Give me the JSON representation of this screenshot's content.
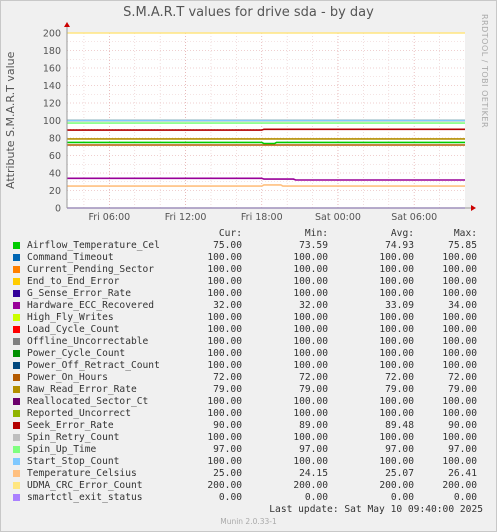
{
  "chart_data": {
    "type": "line",
    "title": "S.M.A.R.T values for drive sda - by day",
    "ylabel": "Attribute S.M.A.R.T value",
    "ylim": [
      0,
      200
    ],
    "yticks": [
      0,
      20,
      40,
      60,
      80,
      100,
      120,
      140,
      160,
      180,
      200
    ],
    "xlim": [
      "Fri 02:40",
      "Sat 10:00"
    ],
    "xticks": [
      "Fri 06:00",
      "Fri 12:00",
      "Fri 18:00",
      "Sat 00:00",
      "Sat 06:00"
    ],
    "grid": true,
    "series": [
      {
        "name": "Airflow_Temperature_Cel",
        "color": "#00cc00",
        "cur": "75.00",
        "min": "73.59",
        "avg": "74.93",
        "max": "75.85",
        "points": [
          [
            "Fri 02:40",
            75
          ],
          [
            "Fri 18:00",
            75
          ],
          [
            "Fri 18:10",
            73.6
          ],
          [
            "Fri 19:00",
            73.6
          ],
          [
            "Fri 19:10",
            75
          ],
          [
            "Sat 10:00",
            75
          ]
        ]
      },
      {
        "name": "Command_Timeout",
        "color": "#0066b3",
        "cur": "100.00",
        "min": "100.00",
        "avg": "100.00",
        "max": "100.00",
        "points": [
          [
            "Fri 02:40",
            100
          ],
          [
            "Sat 10:00",
            100
          ]
        ]
      },
      {
        "name": "Current_Pending_Sector",
        "color": "#ff8000",
        "cur": "100.00",
        "min": "100.00",
        "avg": "100.00",
        "max": "100.00",
        "points": [
          [
            "Fri 02:40",
            100
          ],
          [
            "Sat 10:00",
            100
          ]
        ]
      },
      {
        "name": "End_to_End_Error",
        "color": "#ffcc00",
        "cur": "100.00",
        "min": "100.00",
        "avg": "100.00",
        "max": "100.00",
        "points": [
          [
            "Fri 02:40",
            100
          ],
          [
            "Sat 10:00",
            100
          ]
        ]
      },
      {
        "name": "G_Sense_Error_Rate",
        "color": "#330099",
        "cur": "100.00",
        "min": "100.00",
        "avg": "100.00",
        "max": "100.00",
        "points": [
          [
            "Fri 02:40",
            100
          ],
          [
            "Sat 10:00",
            100
          ]
        ]
      },
      {
        "name": "Hardware_ECC_Recovered",
        "color": "#990099",
        "cur": "32.00",
        "min": "32.00",
        "avg": "33.09",
        "max": "34.00",
        "points": [
          [
            "Fri 02:40",
            34
          ],
          [
            "Fri 18:00",
            34
          ],
          [
            "Fri 18:10",
            33
          ],
          [
            "Fri 20:30",
            33
          ],
          [
            "Fri 20:40",
            32
          ],
          [
            "Sat 10:00",
            32
          ]
        ]
      },
      {
        "name": "High_Fly_Writes",
        "color": "#ccff00",
        "cur": "100.00",
        "min": "100.00",
        "avg": "100.00",
        "max": "100.00",
        "points": [
          [
            "Fri 02:40",
            100
          ],
          [
            "Sat 10:00",
            100
          ]
        ]
      },
      {
        "name": "Load_Cycle_Count",
        "color": "#ff0000",
        "cur": "100.00",
        "min": "100.00",
        "avg": "100.00",
        "max": "100.00",
        "points": [
          [
            "Fri 02:40",
            100
          ],
          [
            "Sat 10:00",
            100
          ]
        ]
      },
      {
        "name": "Offline_Uncorrectable",
        "color": "#808080",
        "cur": "100.00",
        "min": "100.00",
        "avg": "100.00",
        "max": "100.00",
        "points": [
          [
            "Fri 02:40",
            100
          ],
          [
            "Sat 10:00",
            100
          ]
        ]
      },
      {
        "name": "Power_Cycle_Count",
        "color": "#008f00",
        "cur": "100.00",
        "min": "100.00",
        "avg": "100.00",
        "max": "100.00",
        "points": [
          [
            "Fri 02:40",
            100
          ],
          [
            "Sat 10:00",
            100
          ]
        ]
      },
      {
        "name": "Power_Off_Retract_Count",
        "color": "#00487d",
        "cur": "100.00",
        "min": "100.00",
        "avg": "100.00",
        "max": "100.00",
        "points": [
          [
            "Fri 02:40",
            100
          ],
          [
            "Sat 10:00",
            100
          ]
        ]
      },
      {
        "name": "Power_On_Hours",
        "color": "#b35a00",
        "cur": "72.00",
        "min": "72.00",
        "avg": "72.00",
        "max": "72.00",
        "points": [
          [
            "Fri 02:40",
            72
          ],
          [
            "Sat 10:00",
            72
          ]
        ]
      },
      {
        "name": "Raw_Read_Error_Rate",
        "color": "#b38f00",
        "cur": "79.00",
        "min": "79.00",
        "avg": "79.00",
        "max": "79.00",
        "points": [
          [
            "Fri 02:40",
            79
          ],
          [
            "Sat 10:00",
            79
          ]
        ]
      },
      {
        "name": "Reallocated_Sector_Ct",
        "color": "#6b006b",
        "cur": "100.00",
        "min": "100.00",
        "avg": "100.00",
        "max": "100.00",
        "points": [
          [
            "Fri 02:40",
            100
          ],
          [
            "Sat 10:00",
            100
          ]
        ]
      },
      {
        "name": "Reported_Uncorrect",
        "color": "#8fb300",
        "cur": "100.00",
        "min": "100.00",
        "avg": "100.00",
        "max": "100.00",
        "points": [
          [
            "Fri 02:40",
            100
          ],
          [
            "Sat 10:00",
            100
          ]
        ]
      },
      {
        "name": "Seek_Error_Rate",
        "color": "#b30000",
        "cur": "90.00",
        "min": "89.00",
        "avg": "89.48",
        "max": "90.00",
        "points": [
          [
            "Fri 02:40",
            89
          ],
          [
            "Fri 18:00",
            89
          ],
          [
            "Fri 18:10",
            90
          ],
          [
            "Sat 10:00",
            90
          ]
        ]
      },
      {
        "name": "Spin_Retry_Count",
        "color": "#bebebe",
        "cur": "100.00",
        "min": "100.00",
        "avg": "100.00",
        "max": "100.00",
        "points": [
          [
            "Fri 02:40",
            100
          ],
          [
            "Sat 10:00",
            100
          ]
        ]
      },
      {
        "name": "Spin_Up_Time",
        "color": "#80ff80",
        "cur": "97.00",
        "min": "97.00",
        "avg": "97.00",
        "max": "97.00",
        "points": [
          [
            "Fri 02:40",
            97
          ],
          [
            "Sat 10:00",
            97
          ]
        ]
      },
      {
        "name": "Start_Stop_Count",
        "color": "#80c9ff",
        "cur": "100.00",
        "min": "100.00",
        "avg": "100.00",
        "max": "100.00",
        "points": [
          [
            "Fri 02:40",
            100
          ],
          [
            "Sat 10:00",
            100
          ]
        ]
      },
      {
        "name": "Temperature_Celsius",
        "color": "#ffc080",
        "cur": "25.00",
        "min": "24.15",
        "avg": "25.07",
        "max": "26.41",
        "points": [
          [
            "Fri 02:40",
            25
          ],
          [
            "Fri 18:00",
            25
          ],
          [
            "Fri 18:10",
            26.4
          ],
          [
            "Fri 19:30",
            26.4
          ],
          [
            "Fri 19:40",
            25
          ],
          [
            "Sat 10:00",
            25
          ]
        ]
      },
      {
        "name": "UDMA_CRC_Error_Count",
        "color": "#ffe680",
        "cur": "200.00",
        "min": "200.00",
        "avg": "200.00",
        "max": "200.00",
        "points": [
          [
            "Fri 02:40",
            200
          ],
          [
            "Sat 10:00",
            200
          ]
        ]
      },
      {
        "name": "smartctl_exit_status",
        "color": "#aa80ff",
        "cur": "0.00",
        "min": "0.00",
        "avg": "0.00",
        "max": "0.00",
        "points": [
          [
            "Fri 02:40",
            0
          ],
          [
            "Sat 10:00",
            0
          ]
        ]
      }
    ]
  },
  "legend_header": {
    "cur": "Cur:",
    "min": "Min:",
    "avg": "Avg:",
    "max": "Max:"
  },
  "last_update": "Last update:  Sat May 10 09:40:00 2025",
  "credit": "RRDTOOL / TOBI OETIKER",
  "munin_version": "Munin 2.0.33-1",
  "colors": {
    "plot_bg": "#ffffff",
    "grid_minor": "#e8c8c8",
    "grid_major": "#e0a0a0",
    "axis": "#999999",
    "arrow": "#cc0000"
  }
}
